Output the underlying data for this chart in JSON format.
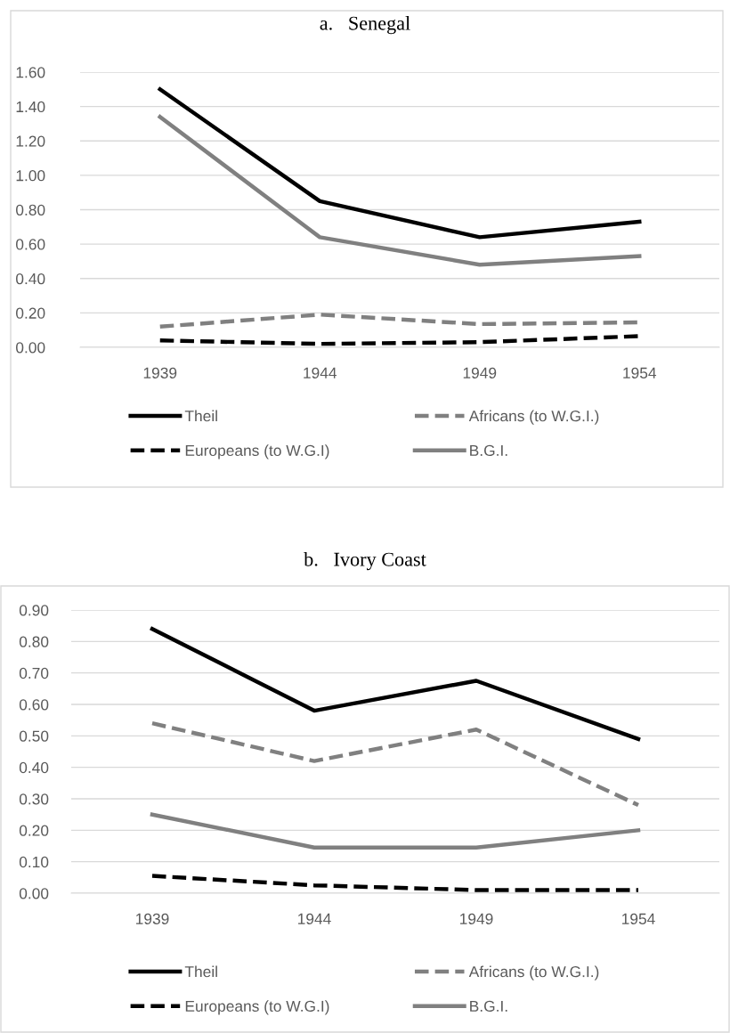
{
  "chart_data": [
    {
      "type": "line",
      "title": "a.   Senegal",
      "categories": [
        "1939",
        "1944",
        "1949",
        "1954"
      ],
      "series": [
        {
          "name": "Theil",
          "color": "#000000",
          "line_style": "solid",
          "values": [
            1.5,
            0.85,
            0.64,
            0.73
          ]
        },
        {
          "name": "Africans (to W.G.I.)",
          "color": "#808080",
          "line_style": "dashed",
          "values": [
            0.12,
            0.19,
            0.135,
            0.145
          ]
        },
        {
          "name": "Europeans (to W.G.I)",
          "color": "#000000",
          "line_style": "dashed",
          "values": [
            0.04,
            0.02,
            0.03,
            0.065
          ]
        },
        {
          "name": "B.G.I.",
          "color": "#808080",
          "line_style": "solid",
          "values": [
            1.34,
            0.64,
            0.48,
            0.53
          ]
        }
      ],
      "ylim": [
        0,
        1.6
      ],
      "yticks": [
        {
          "value": 0,
          "label": "0.00"
        },
        {
          "value": 0.2,
          "label": "0.20"
        },
        {
          "value": 0.4,
          "label": "0.40"
        },
        {
          "value": 0.6,
          "label": "0.60"
        },
        {
          "value": 0.8,
          "label": "0.80"
        },
        {
          "value": 1.0,
          "label": "1.00"
        },
        {
          "value": 1.2,
          "label": "1.20"
        },
        {
          "value": 1.4,
          "label": "1.40"
        },
        {
          "value": 1.6,
          "label": "1.60"
        }
      ],
      "grid": "y",
      "legend": "bottom",
      "marker": "none"
    },
    {
      "type": "line",
      "title": "b.   Ivory Coast",
      "categories": [
        "1939",
        "1944",
        "1949",
        "1954"
      ],
      "series": [
        {
          "name": "Theil",
          "color": "#000000",
          "line_style": "solid",
          "values": [
            0.84,
            0.58,
            0.675,
            0.49
          ]
        },
        {
          "name": "Africans (to W.G.I.)",
          "color": "#808080",
          "line_style": "dashed",
          "values": [
            0.54,
            0.42,
            0.52,
            0.28
          ]
        },
        {
          "name": "Europeans (to W.G.I)",
          "color": "#000000",
          "line_style": "dashed",
          "values": [
            0.055,
            0.025,
            0.01,
            0.01
          ]
        },
        {
          "name": "B.G.I.",
          "color": "#808080",
          "line_style": "solid",
          "values": [
            0.25,
            0.145,
            0.145,
            0.2
          ]
        }
      ],
      "ylim": [
        0,
        0.9
      ],
      "yticks": [
        {
          "value": 0,
          "label": "0.00"
        },
        {
          "value": 0.1,
          "label": "0.10"
        },
        {
          "value": 0.2,
          "label": "0.20"
        },
        {
          "value": 0.3,
          "label": "0.30"
        },
        {
          "value": 0.4,
          "label": "0.40"
        },
        {
          "value": 0.5,
          "label": "0.50"
        },
        {
          "value": 0.6,
          "label": "0.60"
        },
        {
          "value": 0.7,
          "label": "0.70"
        },
        {
          "value": 0.8,
          "label": "0.80"
        },
        {
          "value": 0.9,
          "label": "0.90"
        }
      ],
      "grid": "y",
      "legend": "bottom",
      "marker": "none"
    }
  ]
}
